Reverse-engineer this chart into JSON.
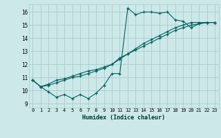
{
  "xlabel": "Humidex (Indice chaleur)",
  "bg_color": "#cce8e8",
  "grid_color": "#aacccc",
  "line_color": "#006060",
  "xlim": [
    -0.5,
    23.5
  ],
  "ylim": [
    8.7,
    16.6
  ],
  "yticks": [
    9,
    10,
    11,
    12,
    13,
    14,
    15,
    16
  ],
  "xticks": [
    0,
    1,
    2,
    3,
    4,
    5,
    6,
    7,
    8,
    9,
    10,
    11,
    12,
    13,
    14,
    15,
    16,
    17,
    18,
    19,
    20,
    21,
    22,
    23
  ],
  "line1": [
    10.8,
    10.3,
    9.9,
    9.5,
    9.7,
    9.4,
    9.7,
    9.4,
    9.8,
    10.4,
    11.3,
    11.3,
    16.3,
    15.8,
    16.0,
    16.0,
    15.9,
    16.0,
    15.4,
    15.3,
    14.8,
    15.1,
    15.2,
    15.2
  ],
  "line2": [
    10.8,
    10.3,
    10.5,
    10.8,
    10.9,
    11.1,
    11.3,
    11.5,
    11.6,
    11.8,
    12.0,
    12.5,
    12.8,
    13.1,
    13.4,
    13.7,
    14.0,
    14.3,
    14.6,
    14.8,
    15.0,
    15.1,
    15.2,
    15.2
  ],
  "line3": [
    10.8,
    10.3,
    10.4,
    10.6,
    10.8,
    11.0,
    11.1,
    11.3,
    11.5,
    11.7,
    12.0,
    12.4,
    12.8,
    13.2,
    13.6,
    13.9,
    14.2,
    14.5,
    14.8,
    15.0,
    15.2,
    15.2,
    15.2,
    15.2
  ]
}
